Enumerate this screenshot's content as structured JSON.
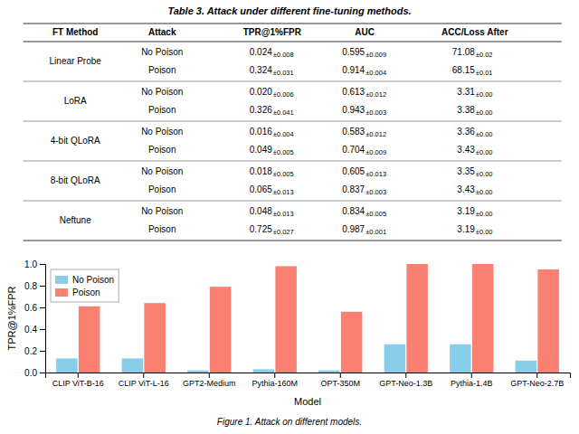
{
  "chart_data": [
    {
      "type": "table",
      "title": "Table 3. Attack under different fine-tuning methods.",
      "columns": [
        "FT Method",
        "Attack",
        "TPR@1%FPR",
        "AUC",
        "ACC/Loss After"
      ],
      "rows": [
        {
          "method": "Linear Probe",
          "attacks": [
            {
              "attack": "No Poison",
              "cells": [
                [
                  "0.024",
                  "±0.008"
                ],
                [
                  "0.595",
                  "±0.009"
                ],
                [
                  "71.08",
                  "±0.02"
                ]
              ]
            },
            {
              "attack": "Poison",
              "cells": [
                [
                  "0.324",
                  "±0.031"
                ],
                [
                  "0.914",
                  "±0.004"
                ],
                [
                  "68.15",
                  "±0.01"
                ]
              ]
            }
          ]
        },
        {
          "method": "LoRA",
          "attacks": [
            {
              "attack": "No Poison",
              "cells": [
                [
                  "0.020",
                  "±0.006"
                ],
                [
                  "0.613",
                  "±0.012"
                ],
                [
                  "3.31",
                  "±0.00"
                ]
              ]
            },
            {
              "attack": "Poison",
              "cells": [
                [
                  "0.326",
                  "±0.041"
                ],
                [
                  "0.943",
                  "±0.003"
                ],
                [
                  "3.38",
                  "±0.00"
                ]
              ]
            }
          ]
        },
        {
          "method": "4-bit QLoRA",
          "attacks": [
            {
              "attack": "No Poison",
              "cells": [
                [
                  "0.016",
                  "±0.004"
                ],
                [
                  "0.583",
                  "±0.012"
                ],
                [
                  "3.36",
                  "±0.00"
                ]
              ]
            },
            {
              "attack": "Poison",
              "cells": [
                [
                  "0.049",
                  "±0.005"
                ],
                [
                  "0.704",
                  "±0.009"
                ],
                [
                  "3.43",
                  "±0.00"
                ]
              ]
            }
          ]
        },
        {
          "method": "8-bit QLoRA",
          "attacks": [
            {
              "attack": "No Poison",
              "cells": [
                [
                  "0.018",
                  "±0.005"
                ],
                [
                  "0.605",
                  "±0.013"
                ],
                [
                  "3.35",
                  "±0.00"
                ]
              ]
            },
            {
              "attack": "Poison",
              "cells": [
                [
                  "0.065",
                  "±0.013"
                ],
                [
                  "0.837",
                  "±0.003"
                ],
                [
                  "3.43",
                  "±0.00"
                ]
              ]
            }
          ]
        },
        {
          "method": "Neftune",
          "attacks": [
            {
              "attack": "No Poison",
              "cells": [
                [
                  "0.048",
                  "±0.013"
                ],
                [
                  "0.834",
                  "±0.005"
                ],
                [
                  "3.19",
                  "±0.00"
                ]
              ]
            },
            {
              "attack": "Poison",
              "cells": [
                [
                  "0.725",
                  "±0.027"
                ],
                [
                  "0.987",
                  "±0.001"
                ],
                [
                  "3.19",
                  "±0.00"
                ]
              ]
            }
          ]
        }
      ]
    },
    {
      "type": "bar",
      "categories": [
        "CLIP ViT-B-16",
        "CLIP ViT-L-16",
        "GPT2-Medium",
        "Pythia-160M",
        "OPT-350M",
        "GPT-Neo-1.3B",
        "Pythia-1.4B",
        "GPT-Neo-2.7B"
      ],
      "series": [
        {
          "name": "No Poison",
          "color": "#87CEEB",
          "values": [
            0.13,
            0.13,
            0.02,
            0.03,
            0.02,
            0.26,
            0.26,
            0.11
          ]
        },
        {
          "name": "Poison",
          "color": "#FA8072",
          "values": [
            0.61,
            0.64,
            0.79,
            0.98,
            0.56,
            1.0,
            1.0,
            0.95
          ]
        }
      ],
      "xlabel": "Model",
      "ylabel": "TPR@1%FPR",
      "ylim": [
        0.0,
        1.0
      ],
      "yticks": [
        {
          "value": 0.0,
          "label": "0.0"
        },
        0.2,
        0.4,
        0.6,
        0.8,
        {
          "value": 1.0,
          "label": "1.0"
        }
      ],
      "grid": false,
      "legend": "upper left",
      "caption": "Figure 1. Attack on different models."
    }
  ]
}
